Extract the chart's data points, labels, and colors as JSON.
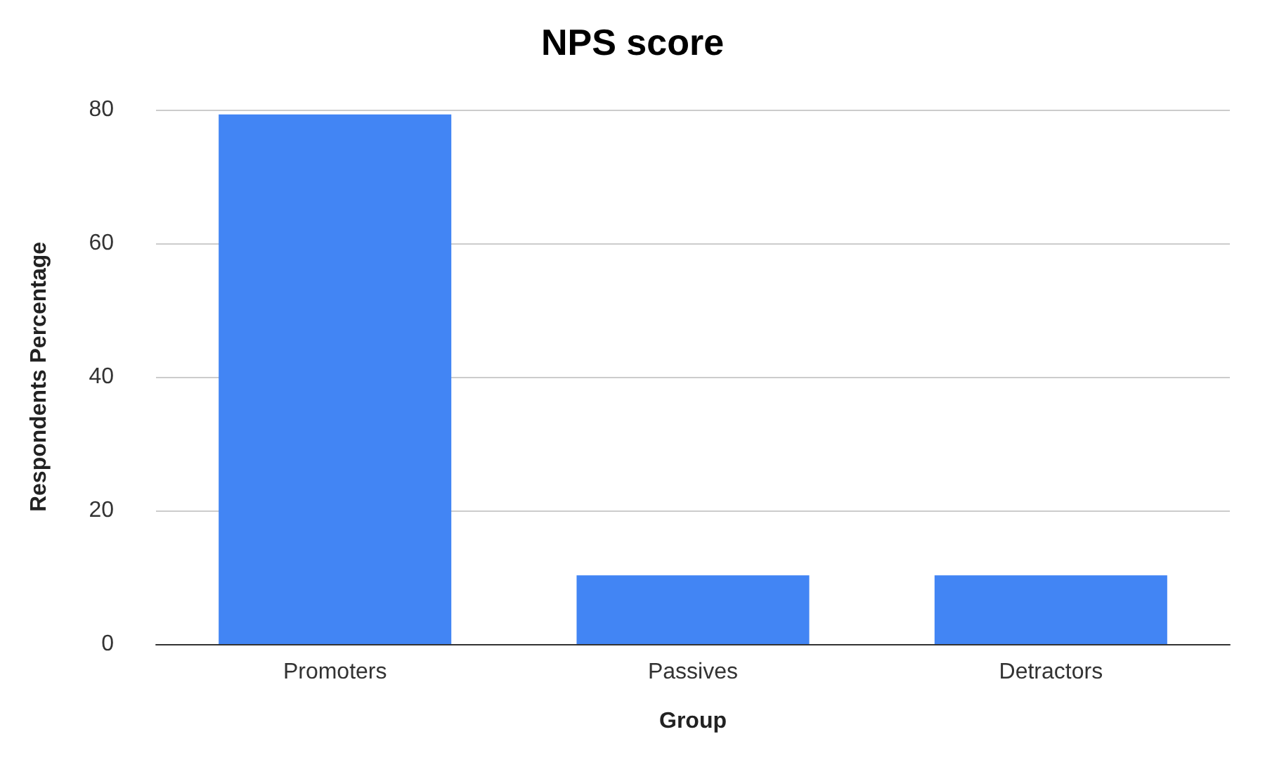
{
  "chart_data": {
    "type": "bar",
    "title": "NPS score",
    "xlabel": "Group",
    "ylabel": "Respondents Percentage",
    "categories": [
      "Promoters",
      "Passives",
      "Detractors"
    ],
    "values": [
      79.3,
      10.3,
      10.3
    ],
    "color": "#4285f4",
    "ylim": [
      0,
      80
    ],
    "yticks": [
      0,
      20,
      40,
      60,
      80
    ],
    "grid": "y"
  }
}
